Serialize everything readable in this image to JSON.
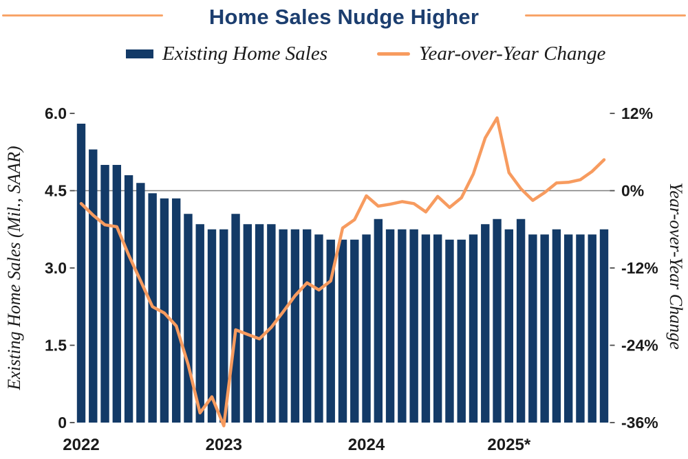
{
  "title": {
    "text": "Home Sales Nudge Higher"
  },
  "legend": {
    "bar_label": "Existing Home Sales",
    "line_label": "Year-over-Year Change"
  },
  "colors": {
    "navy": "#133A67",
    "title_navy": "#1C3E6F",
    "orange": "#F79B5F",
    "rule_orange": "#F8A468",
    "gridline": "#7D7D7D",
    "tick": "#4A4A4A",
    "text": "#1A1A1A"
  },
  "chart_data": {
    "type": "bar+line",
    "title": "Home Sales Nudge Higher",
    "legend_position": "top",
    "grid": "single horizontal gridline at right-axis 0%",
    "x_months": [
      "Jan 2022",
      "Feb 2022",
      "Mar 2022",
      "Apr 2022",
      "May 2022",
      "Jun 2022",
      "Jul 2022",
      "Aug 2022",
      "Sep 2022",
      "Oct 2022",
      "Nov 2022",
      "Dec 2022",
      "Jan 2023",
      "Feb 2023",
      "Mar 2023",
      "Apr 2023",
      "May 2023",
      "Jun 2023",
      "Jul 2023",
      "Aug 2023",
      "Sep 2023",
      "Oct 2023",
      "Nov 2023",
      "Dec 2023",
      "Jan 2024",
      "Feb 2024",
      "Mar 2024",
      "Apr 2024",
      "May 2024",
      "Jun 2024",
      "Jul 2024",
      "Aug 2024",
      "Sep 2024",
      "Oct 2024",
      "Nov 2024",
      "Dec 2024",
      "Jan 2025",
      "Feb 2025",
      "Mar 2025",
      "Apr 2025",
      "May 2025",
      "Jun 2025",
      "Jul 2025",
      "Aug 2025",
      "Sep 2025"
    ],
    "x_axis_tick_labels": [
      "2022",
      "2023",
      "2024",
      "2025*"
    ],
    "x_axis_tick_month_index": [
      0,
      12,
      24,
      36
    ],
    "series": [
      {
        "name": "Existing Home Sales",
        "type": "bar",
        "axis": "left",
        "color": "#133A67",
        "values": [
          5.8,
          5.3,
          5.0,
          5.0,
          4.8,
          4.65,
          4.45,
          4.35,
          4.35,
          4.05,
          3.85,
          3.75,
          3.75,
          4.05,
          3.85,
          3.85,
          3.85,
          3.75,
          3.75,
          3.75,
          3.65,
          3.55,
          3.55,
          3.55,
          3.65,
          3.95,
          3.75,
          3.75,
          3.75,
          3.65,
          3.65,
          3.55,
          3.55,
          3.65,
          3.85,
          3.95,
          3.75,
          3.95,
          3.65,
          3.65,
          3.75,
          3.65,
          3.65,
          3.65,
          3.75
        ]
      },
      {
        "name": "Year-over-Year Change",
        "type": "line",
        "axis": "right",
        "color": "#F79B5F",
        "values": [
          -2.0,
          -3.8,
          -5.3,
          -5.6,
          -10.0,
          -14.0,
          -18.0,
          -19.0,
          -21.0,
          -27.0,
          -34.5,
          -32.0,
          -36.5,
          -21.6,
          -22.3,
          -23.0,
          -21.2,
          -18.8,
          -16.3,
          -14.3,
          -15.4,
          -14.0,
          -5.8,
          -4.5,
          -0.8,
          -2.4,
          -2.1,
          -1.7,
          -2.0,
          -3.3,
          -0.9,
          -2.6,
          -1.1,
          2.6,
          8.2,
          11.3,
          2.8,
          0.3,
          -1.5,
          -0.3,
          1.2,
          1.3,
          1.7,
          3.0,
          4.8
        ]
      }
    ],
    "left_axis": {
      "title": "Existing Home Sales (Mil., SAAR)",
      "tick_labels": [
        "6.0",
        "4.5",
        "3.0",
        "1.5",
        "0"
      ],
      "tick_values": [
        6.0,
        4.5,
        3.0,
        1.5,
        0
      ],
      "range": [
        0,
        6
      ]
    },
    "right_axis": {
      "title": "Year-over-Year Change",
      "tick_labels": [
        "12%",
        "0%",
        "-12%",
        "-24%",
        "-36%"
      ],
      "tick_values": [
        12,
        0,
        -12,
        -24,
        -36
      ],
      "range": [
        -36,
        12
      ]
    },
    "gridline": {
      "right_axis_value": 0,
      "left_axis_value": 4.5
    }
  }
}
